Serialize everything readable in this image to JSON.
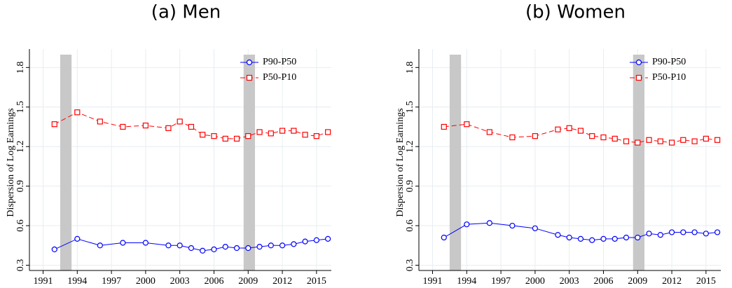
{
  "chart_data": [
    {
      "type": "line",
      "title": "(a) Men",
      "y_label": "Dispersion of Log Earnings",
      "x": [
        1992,
        1994,
        1996,
        1998,
        2000,
        2002,
        2003,
        2004,
        2005,
        2006,
        2007,
        2008,
        2009,
        2010,
        2011,
        2012,
        2013,
        2014,
        2015,
        2016
      ],
      "series": [
        {
          "name": "P90-P50",
          "color": "#0000ff",
          "marker": "circle",
          "dashed": false,
          "values": [
            0.42,
            0.5,
            0.45,
            0.47,
            0.47,
            0.45,
            0.45,
            0.43,
            0.41,
            0.42,
            0.44,
            0.43,
            0.43,
            0.44,
            0.45,
            0.45,
            0.46,
            0.48,
            0.49,
            0.5
          ]
        },
        {
          "name": "P50-P10",
          "color": "#ff0000",
          "marker": "square",
          "dashed": true,
          "values": [
            1.37,
            1.46,
            1.39,
            1.35,
            1.36,
            1.34,
            1.39,
            1.35,
            1.29,
            1.28,
            1.26,
            1.26,
            1.28,
            1.31,
            1.3,
            1.32,
            1.32,
            1.29,
            1.28,
            1.31
          ]
        }
      ],
      "shading": [
        [
          1992.5,
          1993.5
        ],
        [
          2008.6,
          2009.6
        ]
      ],
      "xlim": [
        1989.8,
        2016.3
      ],
      "xticks": [
        1991,
        1994,
        1997,
        2000,
        2003,
        2006,
        2009,
        2012,
        2015
      ],
      "ylim": [
        0.26,
        1.94
      ],
      "yticks": [
        0.3,
        0.6,
        0.9,
        1.2,
        1.5,
        1.8
      ],
      "grid": true,
      "legend": "top-right"
    },
    {
      "type": "line",
      "title": "(b) Women",
      "y_label": "Dispersion of Log Earnings",
      "x": [
        1992,
        1994,
        1996,
        1998,
        2000,
        2002,
        2003,
        2004,
        2005,
        2006,
        2007,
        2008,
        2009,
        2010,
        2011,
        2012,
        2013,
        2014,
        2015,
        2016
      ],
      "series": [
        {
          "name": "P90-P50",
          "color": "#0000ff",
          "marker": "circle",
          "dashed": false,
          "values": [
            0.51,
            0.61,
            0.62,
            0.6,
            0.58,
            0.53,
            0.51,
            0.5,
            0.49,
            0.5,
            0.5,
            0.51,
            0.51,
            0.54,
            0.53,
            0.55,
            0.55,
            0.55,
            0.54,
            0.55
          ]
        },
        {
          "name": "P50-P10",
          "color": "#ff0000",
          "marker": "square",
          "dashed": true,
          "values": [
            1.35,
            1.37,
            1.31,
            1.27,
            1.28,
            1.33,
            1.34,
            1.32,
            1.28,
            1.27,
            1.26,
            1.24,
            1.23,
            1.25,
            1.24,
            1.23,
            1.25,
            1.24,
            1.26,
            1.25
          ]
        }
      ],
      "shading": [
        [
          1992.5,
          1993.5
        ],
        [
          2008.6,
          2009.6
        ]
      ],
      "xlim": [
        1989.8,
        2016.3
      ],
      "xticks": [
        1991,
        1994,
        1997,
        2000,
        2003,
        2006,
        2009,
        2012,
        2015
      ],
      "ylim": [
        0.26,
        1.94
      ],
      "yticks": [
        0.3,
        0.6,
        0.9,
        1.2,
        1.5,
        1.8
      ],
      "grid": true,
      "legend": "top-right"
    }
  ]
}
